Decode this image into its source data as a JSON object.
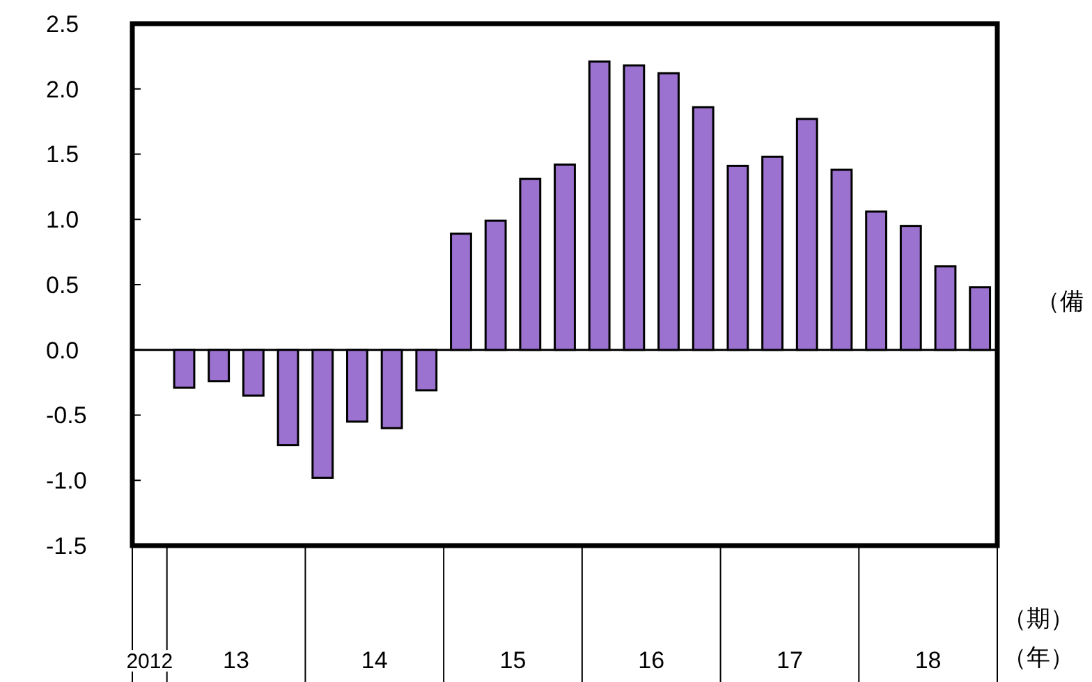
{
  "chart_data": {
    "type": "bar",
    "categories": [
      null,
      null,
      null,
      null,
      null,
      null,
      null,
      null,
      null,
      null,
      null,
      null,
      null,
      null,
      null,
      null,
      null,
      null,
      null,
      null,
      null,
      null,
      null,
      null,
      null
    ],
    "values": [
      null,
      -0.29,
      -0.24,
      -0.35,
      -0.73,
      -0.98,
      -0.55,
      -0.6,
      -0.31,
      0.89,
      0.99,
      1.31,
      1.42,
      2.21,
      2.18,
      2.12,
      1.86,
      1.41,
      1.48,
      1.77,
      1.38,
      1.06,
      0.95,
      0.64,
      0.48
    ],
    "color": "#9b72cf",
    "ylim": [
      -1.5,
      2.5
    ],
    "yticks": [
      {
        "value": -1.5,
        "label": "-1.5"
      },
      {
        "value": -1.0,
        "label": "-1.0"
      },
      {
        "value": -0.5,
        "label": "-0.5"
      },
      {
        "value": 0,
        "label": "0.0"
      },
      {
        "value": 0.5,
        "label": "0.5"
      },
      {
        "value": 1.0,
        "label": "1.0"
      },
      {
        "value": 1.5,
        "label": "1.5"
      },
      {
        "value": 2.0,
        "label": "2.0"
      },
      {
        "value": 2.5,
        "label": "2.5"
      }
    ],
    "xlabel": "（期）",
    "annotations": [
      "2012",
      "13",
      "14",
      "15",
      "16",
      "17",
      "18",
      "（年）",
      "（備"
    ]
  }
}
